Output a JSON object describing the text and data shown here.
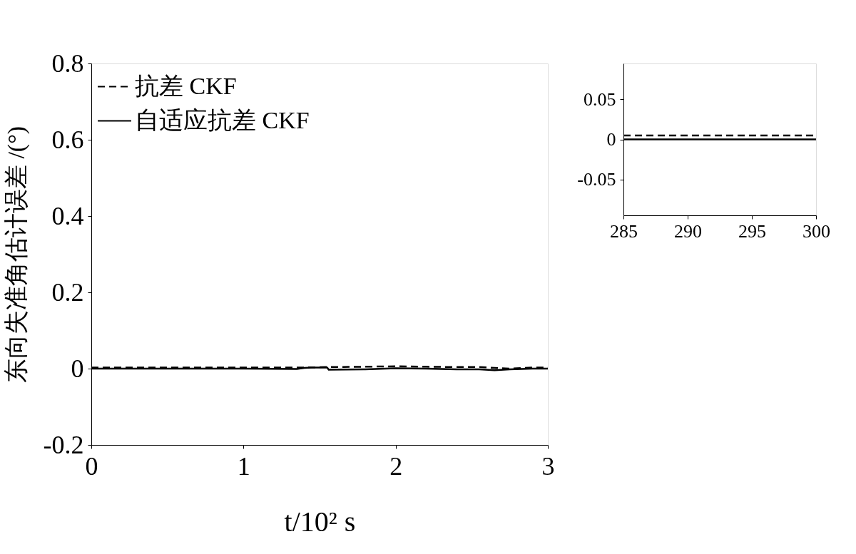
{
  "chart_data": [
    {
      "type": "line",
      "xlabel": "t/10² s",
      "ylabel": "东向失准角估计误差 /(°)",
      "xlim": [
        0,
        3
      ],
      "xticks": [
        0,
        1,
        2,
        3
      ],
      "ylim": [
        -0.2,
        0.8
      ],
      "yticks": [
        -0.2,
        {
          "value": 0,
          "label": "0"
        },
        0.2,
        0.4,
        0.6,
        0.8
      ],
      "grid": false,
      "legend": "top left",
      "marker": "none",
      "series": [
        {
          "name": "抗差 CKF",
          "color": "#000000",
          "line_style": "dashed",
          "x": [
            0,
            0.5,
            1.0,
            1.4,
            1.55,
            1.8,
            2.0,
            2.2,
            2.4,
            2.55,
            2.65,
            2.75,
            2.9,
            3.0
          ],
          "values": [
            0.003,
            0.003,
            0.003,
            0.003,
            0.004,
            0.005,
            0.006,
            0.005,
            0.004,
            0.004,
            0.002,
            0.0,
            0.003,
            0.003
          ]
        },
        {
          "name": "自适应抗差 CKF",
          "color": "#000000",
          "line_style": "solid",
          "x": [
            0,
            0.5,
            1.0,
            1.35,
            1.4,
            1.45,
            1.55,
            1.56,
            1.8,
            2.0,
            2.2,
            2.4,
            2.55,
            2.65,
            2.75,
            2.9,
            3.0
          ],
          "values": [
            0,
            0,
            0,
            -0.001,
            0.002,
            0.003,
            0.003,
            -0.003,
            -0.002,
            0.001,
            0.0,
            -0.002,
            -0.002,
            -0.004,
            -0.002,
            0.0,
            0.0
          ]
        }
      ]
    },
    {
      "type": "line",
      "xlim": [
        285,
        300
      ],
      "xticks": [
        285,
        290,
        295,
        300
      ],
      "ylim": [
        -0.095,
        0.095
      ],
      "yticks": [
        -0.05,
        {
          "value": 0,
          "label": "0"
        },
        0.05
      ],
      "grid": false,
      "marker": "none",
      "series": [
        {
          "color": "#000000",
          "line_style": "dashed",
          "x": [
            285,
            287.5,
            290,
            292.5,
            295,
            297.5,
            300
          ],
          "values": [
            0.005,
            0.005,
            0.005,
            0.005,
            0.005,
            0.005,
            0.005
          ]
        },
        {
          "color": "#000000",
          "line_style": "solid",
          "x": [
            285,
            287.5,
            290,
            292.5,
            295,
            297.5,
            300
          ],
          "values": [
            0,
            0,
            0,
            0,
            0,
            0,
            0
          ]
        }
      ]
    }
  ]
}
